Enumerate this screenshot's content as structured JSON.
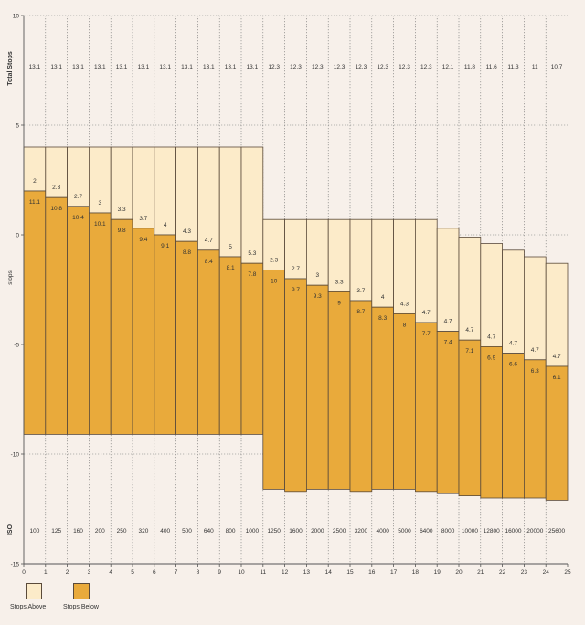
{
  "chart_data": {
    "type": "bar",
    "subtype": "stacked-floating",
    "x": [
      0,
      1,
      2,
      3,
      4,
      5,
      6,
      7,
      8,
      9,
      10,
      11,
      12,
      13,
      14,
      15,
      16,
      17,
      18,
      19,
      20,
      21,
      22,
      23,
      24
    ],
    "iso": [
      "100",
      "125",
      "160",
      "200",
      "250",
      "320",
      "400",
      "500",
      "640",
      "800",
      "1000",
      "1250",
      "1600",
      "2000",
      "2500",
      "3200",
      "4000",
      "5000",
      "6400",
      "8000",
      "10000",
      "12800",
      "16000",
      "20000",
      "25600"
    ],
    "total_stops": [
      "13.1",
      "13.1",
      "13.1",
      "13.1",
      "13.1",
      "13.1",
      "13.1",
      "13.1",
      "13.1",
      "13.1",
      "13.1",
      "12.3",
      "12.3",
      "12.3",
      "12.3",
      "12.3",
      "12.3",
      "12.3",
      "12.3",
      "12.1",
      "11.8",
      "11.6",
      "11.3",
      "11",
      "10.7"
    ],
    "series": [
      {
        "name": "Stops Above",
        "values": [
          2,
          2.3,
          2.7,
          3,
          3.3,
          3.7,
          4,
          4.3,
          4.7,
          5,
          5.3,
          2.3,
          2.7,
          3,
          3.3,
          3.7,
          4,
          4.3,
          4.7,
          4.7,
          4.7,
          4.7,
          4.7,
          4.7,
          4.7
        ],
        "labels": [
          "2",
          "2.3",
          "2.7",
          "3",
          "3.3",
          "3.7",
          "4",
          "4.3",
          "4.7",
          "5",
          "5.3",
          "2.3",
          "2.7",
          "3",
          "3.3",
          "3.7",
          "4",
          "4.3",
          "4.7",
          "4.7",
          "4.7",
          "4.7",
          "4.7",
          "4.7",
          "4.7"
        ],
        "color": "#fcebc9"
      },
      {
        "name": "Stops Below",
        "values": [
          11.1,
          10.8,
          10.4,
          10.1,
          9.8,
          9.4,
          9.1,
          8.8,
          8.4,
          8.1,
          7.8,
          10,
          9.7,
          9.3,
          9,
          8.7,
          8.3,
          8,
          7.7,
          7.4,
          7.1,
          6.9,
          6.6,
          6.3,
          6.1
        ],
        "labels": [
          "11.1",
          "10.8",
          "10.4",
          "10.1",
          "9.8",
          "9.4",
          "9.1",
          "8.8",
          "8.4",
          "8.1",
          "7.8",
          "10",
          "9.7",
          "9.3",
          "9",
          "8.7",
          "8.3",
          "8",
          "7.7",
          "7.4",
          "7.1",
          "6.9",
          "6.6",
          "6.3",
          "6.1"
        ],
        "color": "#e9aa3b"
      }
    ],
    "baseline": [
      2,
      1.7,
      1.3,
      1,
      0.7,
      0.3,
      0,
      -0.3,
      -0.7,
      -1,
      -1.3,
      -1.6,
      -2,
      -2.3,
      -2.6,
      -3,
      -3.3,
      -3.6,
      -4,
      -4.4,
      -4.8,
      -5.1,
      -5.4,
      -5.7,
      -6
    ],
    "xlim": [
      0,
      25
    ],
    "ylim": [
      -15,
      10
    ],
    "yticks": [
      10,
      5,
      0,
      -5,
      -10,
      -15
    ],
    "xticks": [
      0,
      1,
      2,
      3,
      4,
      5,
      6,
      7,
      8,
      9,
      10,
      11,
      12,
      13,
      14,
      15,
      16,
      17,
      18,
      19,
      20,
      21,
      22,
      23,
      24,
      25
    ],
    "ylabel": "stops",
    "row_label_top": "Total Stops",
    "row_label_bottom": "ISO",
    "grid": true,
    "legend_position": "bottom-left",
    "colors": {
      "background": "#f7f0ea",
      "grid": "#777777",
      "outline": "#5a4a3a"
    }
  }
}
